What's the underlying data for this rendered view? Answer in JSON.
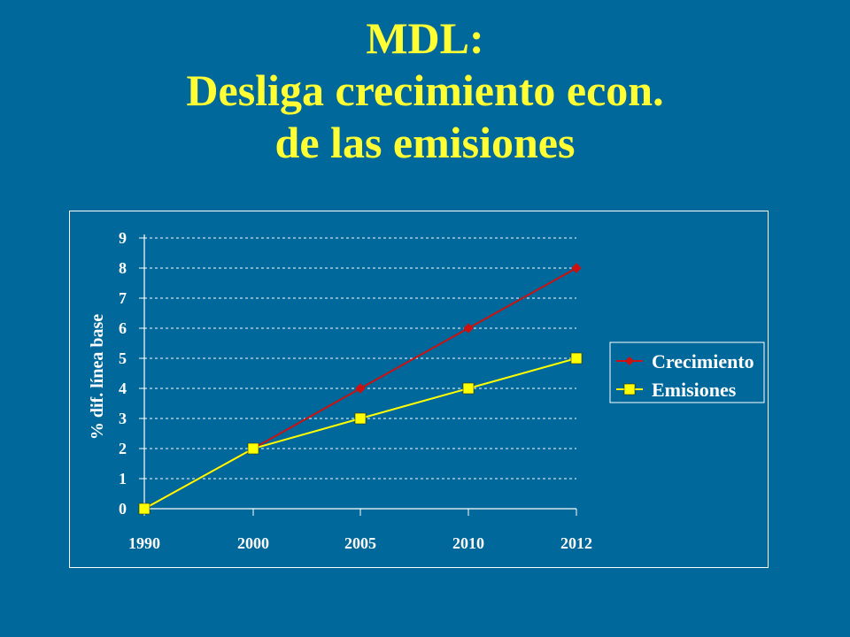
{
  "title": {
    "line1": "MDL:",
    "line2": "Desliga crecimiento econ.",
    "line3": "de las emisiones"
  },
  "chart_data": {
    "type": "line",
    "categories": [
      "1990",
      "2000",
      "2005",
      "2010",
      "2012"
    ],
    "series": [
      {
        "name": "Crecimiento",
        "values": [
          0,
          2,
          4,
          6,
          8
        ],
        "color": "#cc1111",
        "marker": "diamond"
      },
      {
        "name": "Emisiones",
        "values": [
          0,
          2,
          3,
          4,
          5
        ],
        "color": "#ffff00",
        "marker": "square"
      }
    ],
    "ylabel": "% dif. línea base",
    "ylim": [
      0,
      9
    ],
    "yticks": [
      0,
      1,
      2,
      3,
      4,
      5,
      6,
      7,
      8,
      9
    ],
    "grid": true,
    "legend": "right"
  },
  "colors": {
    "background": "#00689a",
    "title": "#ffff33",
    "axis": "#ffffff"
  }
}
